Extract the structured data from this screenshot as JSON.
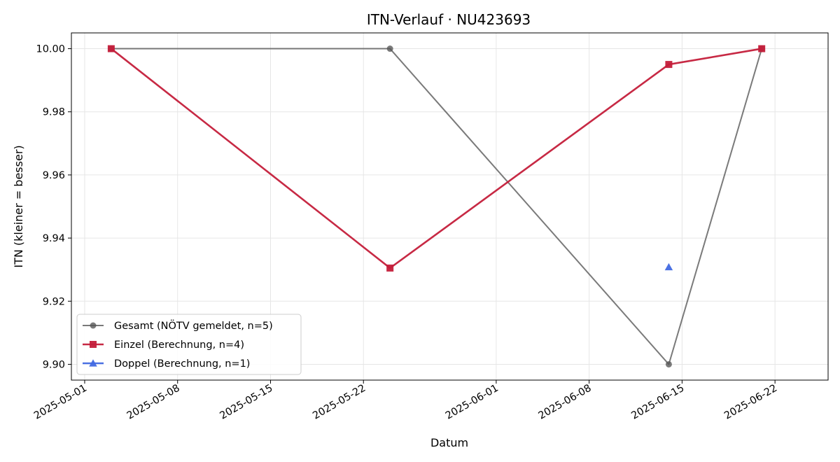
{
  "chart_data": {
    "type": "line",
    "title": "ITN-Verlauf · NU423693",
    "xlabel": "Datum",
    "ylabel": "ITN  (kleiner = besser)",
    "x_range": [
      "2025-04-30",
      "2025-06-26"
    ],
    "ylim": [
      9.895,
      10.005
    ],
    "x_ticks": [
      "2025-05-01",
      "2025-05-08",
      "2025-05-15",
      "2025-05-22",
      "2025-06-01",
      "2025-06-08",
      "2025-06-15",
      "2025-06-22"
    ],
    "y_ticks": [
      "10.00",
      "9.98",
      "9.96",
      "9.94",
      "9.92",
      "9.90"
    ],
    "grid": true,
    "legend_position": "lower-left",
    "series": [
      {
        "name": "Gesamt (NÖTV gemeldet, n=5)",
        "color": "#555555",
        "marker": "circle",
        "points": [
          {
            "x": "2025-05-03",
            "y": 10.0
          },
          {
            "x": "2025-05-24",
            "y": 10.0
          },
          {
            "x": "2025-06-14",
            "y": 9.9
          },
          {
            "x": "2025-06-21",
            "y": 10.0
          }
        ]
      },
      {
        "name": "Einzel (Berechnung, n=4)",
        "color": "#c41e3a",
        "marker": "square",
        "points": [
          {
            "x": "2025-05-03",
            "y": 10.0
          },
          {
            "x": "2025-05-24",
            "y": 9.9305
          },
          {
            "x": "2025-06-14",
            "y": 9.995
          },
          {
            "x": "2025-06-21",
            "y": 10.0
          }
        ]
      },
      {
        "name": "Doppel (Berechnung, n=1)",
        "color": "#4169e1",
        "marker": "triangle",
        "points": [
          {
            "x": "2025-06-14",
            "y": 9.9308
          }
        ]
      }
    ]
  }
}
